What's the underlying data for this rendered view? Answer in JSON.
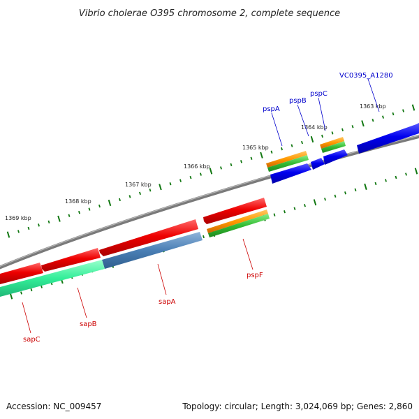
{
  "title": "Vibrio cholerae O395 chromosome 2, complete sequence",
  "footer": {
    "accession": "Accession: NC_009457",
    "summary": "Topology: circular; Length: 3,024,069 bp; Genes: 2,860"
  },
  "kbp_labels": [
    "1363 kbp",
    "1364 kbp",
    "1365 kbp",
    "1366 kbp",
    "1367 kbp",
    "1368 kbp",
    "1369 kbp"
  ],
  "genes": [
    {
      "label": "VC0395_A1280",
      "color": "#0000cc"
    },
    {
      "label": "pspC",
      "color": "#0000cc"
    },
    {
      "label": "pspB",
      "color": "#0000cc"
    },
    {
      "label": "pspA",
      "color": "#0000cc"
    },
    {
      "label": "pspF",
      "color": "#cc0000"
    },
    {
      "label": "sapA",
      "color": "#cc0000"
    },
    {
      "label": "sapB",
      "color": "#cc0000"
    },
    {
      "label": "sapC",
      "color": "#cc0000"
    }
  ],
  "colors": {
    "backbone": "#808080",
    "forward_cds": "#0000ee",
    "reverse_cds": "#ee0000",
    "orange_track": "#ff9900",
    "green_track": "#33bb33",
    "teal_track": "#33ee99",
    "steelblue_track": "#4a7fb5",
    "tick": "#117711"
  }
}
